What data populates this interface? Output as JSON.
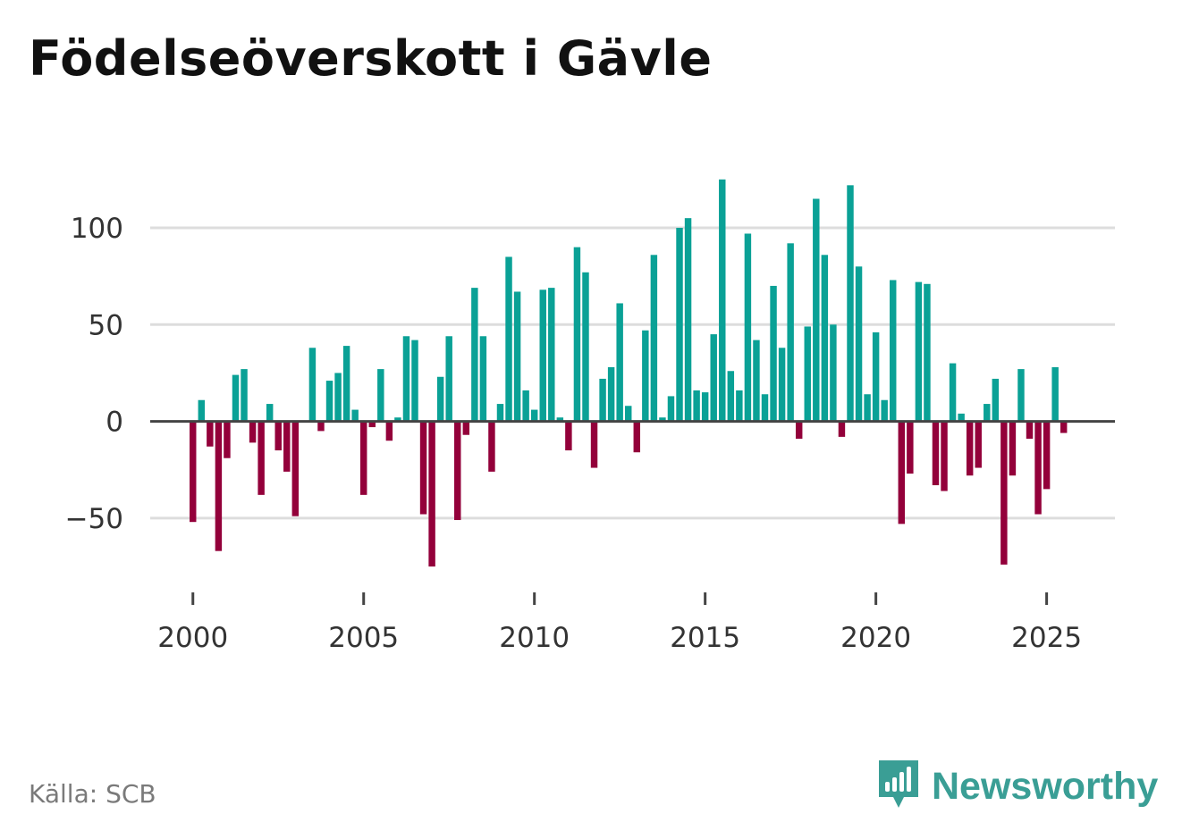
{
  "title": "Födelseöverskott i Gävle",
  "source": "Källa: SCB",
  "brand": {
    "name": "Newsworthy",
    "logo_icon": "bar-chart-speech-bubble-icon",
    "color": "#3a9e95"
  },
  "colors": {
    "positive": "#0aa196",
    "negative": "#93003a",
    "gridline": "#dddddd",
    "zero_line": "#444444"
  },
  "chart_data": {
    "type": "bar",
    "title": "Födelseöverskott i Gävle",
    "xlabel": "",
    "ylabel": "",
    "frequency": "quarterly",
    "start_year": 2000,
    "ylim": [
      -87,
      130
    ],
    "xlim": [
      1998.75,
      2027.0
    ],
    "y_ticks": [
      100,
      50,
      0,
      -50
    ],
    "y_tick_labels": [
      "100",
      "50",
      "0",
      "−50"
    ],
    "x_ticks": [
      2000,
      2005,
      2010,
      2015,
      2020,
      2025
    ],
    "x_tick_labels": [
      "2000",
      "2005",
      "2010",
      "2015",
      "2020",
      "2025"
    ],
    "grid": true,
    "legend": "none",
    "values": [
      -52,
      11,
      -13,
      -67,
      -19,
      24,
      27,
      -11,
      -38,
      9,
      -15,
      -26,
      -49,
      0,
      38,
      -5,
      21,
      25,
      39,
      6,
      -38,
      -3,
      27,
      -10,
      2,
      44,
      42,
      -48,
      -75,
      23,
      44,
      -51,
      -7,
      69,
      44,
      -26,
      9,
      85,
      67,
      16,
      6,
      68,
      69,
      2,
      -15,
      90,
      77,
      -24,
      22,
      28,
      61,
      8,
      -16,
      47,
      86,
      2,
      13,
      100,
      105,
      16,
      15,
      45,
      125,
      26,
      16,
      97,
      42,
      14,
      70,
      38,
      92,
      -9,
      49,
      115,
      86,
      50,
      -8,
      122,
      80,
      14,
      46,
      11,
      73,
      -53,
      -27,
      72,
      71,
      -33,
      -36,
      30,
      4,
      -28,
      -24,
      9,
      22,
      -74,
      -28,
      27,
      -9,
      -48,
      -35,
      28,
      -6
    ]
  }
}
